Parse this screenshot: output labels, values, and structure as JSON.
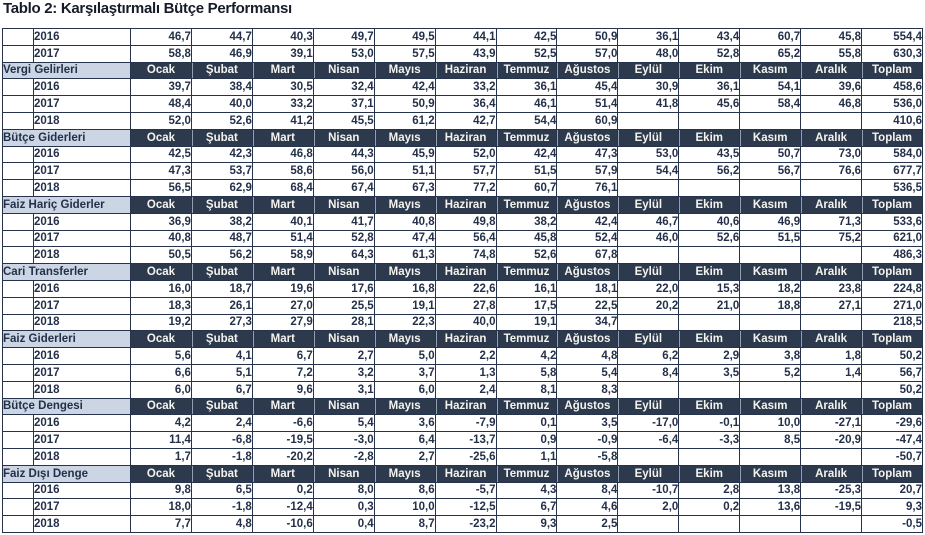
{
  "title": "Tablo 2: Karşılaştırmalı Bütçe Performansı",
  "colors": {
    "page_bg": "#ffffff",
    "header_bg": "#2d3a4d",
    "header_text": "#f4f3ee",
    "section_label_bg": "#ccd5e3",
    "section_label_text": "#22304a",
    "cell_text": "#243149",
    "border": "#25344c",
    "title_text": "#151b29",
    "separator": "#93a0b2"
  },
  "table": {
    "months": [
      "Ocak",
      "Şubat",
      "Mart",
      "Nisan",
      "Mayıs",
      "Haziran",
      "Temmuz",
      "Ağustos",
      "Eylül",
      "Ekim",
      "Kasım",
      "Aralık",
      "Toplam"
    ],
    "orphan_rows": [
      {
        "year": "2016",
        "values": [
          "46,7",
          "44,7",
          "40,3",
          "49,7",
          "49,5",
          "44,1",
          "42,5",
          "50,9",
          "36,1",
          "43,4",
          "60,7",
          "45,8",
          "554,4"
        ]
      },
      {
        "year": "2017",
        "values": [
          "58,8",
          "46,9",
          "39,1",
          "53,0",
          "57,5",
          "43,9",
          "52,5",
          "57,0",
          "48,0",
          "52,8",
          "65,2",
          "55,8",
          "630,3"
        ]
      }
    ],
    "sections": [
      {
        "label": "Vergi Gelirleri",
        "rows": [
          {
            "year": "2016",
            "values": [
              "39,7",
              "38,4",
              "30,5",
              "32,4",
              "42,4",
              "33,2",
              "36,1",
              "45,4",
              "30,9",
              "36,1",
              "54,1",
              "39,6",
              "458,6"
            ]
          },
          {
            "year": "2017",
            "values": [
              "48,4",
              "40,0",
              "33,2",
              "37,1",
              "50,9",
              "36,4",
              "46,1",
              "51,4",
              "41,8",
              "45,6",
              "58,4",
              "46,8",
              "536,0"
            ]
          },
          {
            "year": "2018",
            "values": [
              "52,0",
              "52,6",
              "41,2",
              "45,5",
              "61,2",
              "42,7",
              "54,4",
              "60,9",
              "",
              "",
              "",
              "",
              "410,6"
            ]
          }
        ]
      },
      {
        "label": "Bütçe Giderleri",
        "rows": [
          {
            "year": "2016",
            "values": [
              "42,5",
              "42,3",
              "46,8",
              "44,3",
              "45,9",
              "52,0",
              "42,4",
              "47,3",
              "53,0",
              "43,5",
              "50,7",
              "73,0",
              "584,0"
            ]
          },
          {
            "year": "2017",
            "values": [
              "47,3",
              "53,7",
              "58,6",
              "56,0",
              "51,1",
              "57,7",
              "51,5",
              "57,9",
              "54,4",
              "56,2",
              "56,7",
              "76,6",
              "677,7"
            ]
          },
          {
            "year": "2018",
            "values": [
              "56,5",
              "62,9",
              "68,4",
              "67,4",
              "67,3",
              "77,2",
              "60,7",
              "76,1",
              "",
              "",
              "",
              "",
              "536,5"
            ]
          }
        ]
      },
      {
        "label": "Faiz Hariç Giderler",
        "rows": [
          {
            "year": "2016",
            "values": [
              "36,9",
              "38,2",
              "40,1",
              "41,7",
              "40,8",
              "49,8",
              "38,2",
              "42,4",
              "46,7",
              "40,6",
              "46,9",
              "71,3",
              "533,6"
            ]
          },
          {
            "year": "2017",
            "values": [
              "40,8",
              "48,7",
              "51,4",
              "52,8",
              "47,4",
              "56,4",
              "45,8",
              "52,4",
              "46,0",
              "52,6",
              "51,5",
              "75,2",
              "621,0"
            ]
          },
          {
            "year": "2018",
            "values": [
              "50,5",
              "56,2",
              "58,9",
              "64,3",
              "61,3",
              "74,8",
              "52,6",
              "67,8",
              "",
              "",
              "",
              "",
              "486,3"
            ]
          }
        ]
      },
      {
        "label": "Cari Transferler",
        "rows": [
          {
            "year": "2016",
            "values": [
              "16,0",
              "18,7",
              "19,6",
              "17,6",
              "16,8",
              "22,6",
              "16,1",
              "18,1",
              "22,0",
              "15,3",
              "18,2",
              "23,8",
              "224,8"
            ]
          },
          {
            "year": "2017",
            "values": [
              "18,3",
              "26,1",
              "27,0",
              "25,5",
              "19,1",
              "27,8",
              "17,5",
              "22,5",
              "20,2",
              "21,0",
              "18,8",
              "27,1",
              "271,0"
            ]
          },
          {
            "year": "2018",
            "values": [
              "19,2",
              "27,3",
              "27,9",
              "28,1",
              "22,3",
              "40,0",
              "19,1",
              "34,7",
              "",
              "",
              "",
              "",
              "218,5"
            ]
          }
        ]
      },
      {
        "label": "Faiz Giderleri",
        "rows": [
          {
            "year": "2016",
            "values": [
              "5,6",
              "4,1",
              "6,7",
              "2,7",
              "5,0",
              "2,2",
              "4,2",
              "4,8",
              "6,2",
              "2,9",
              "3,8",
              "1,8",
              "50,2"
            ]
          },
          {
            "year": "2017",
            "values": [
              "6,6",
              "5,1",
              "7,2",
              "3,2",
              "3,7",
              "1,3",
              "5,8",
              "5,4",
              "8,4",
              "3,5",
              "5,2",
              "1,4",
              "56,7"
            ]
          },
          {
            "year": "2018",
            "values": [
              "6,0",
              "6,7",
              "9,6",
              "3,1",
              "6,0",
              "2,4",
              "8,1",
              "8,3",
              "",
              "",
              "",
              "",
              "50,2"
            ]
          }
        ]
      },
      {
        "label": "Bütçe Dengesi",
        "rows": [
          {
            "year": "2016",
            "values": [
              "4,2",
              "2,4",
              "-6,6",
              "5,4",
              "3,6",
              "-7,9",
              "0,1",
              "3,5",
              "-17,0",
              "-0,1",
              "10,0",
              "-27,1",
              "-29,6"
            ]
          },
          {
            "year": "2017",
            "values": [
              "11,4",
              "-6,8",
              "-19,5",
              "-3,0",
              "6,4",
              "-13,7",
              "0,9",
              "-0,9",
              "-6,4",
              "-3,3",
              "8,5",
              "-20,9",
              "-47,4"
            ]
          },
          {
            "year": "2018",
            "values": [
              "1,7",
              "-1,8",
              "-20,2",
              "-2,8",
              "2,7",
              "-25,6",
              "1,1",
              "-5,8",
              "",
              "",
              "",
              "",
              "-50,7"
            ]
          }
        ]
      },
      {
        "label": "Faiz Dışı Denge",
        "rows": [
          {
            "year": "2016",
            "values": [
              "9,8",
              "6,5",
              "0,2",
              "8,0",
              "8,6",
              "-5,7",
              "4,3",
              "8,4",
              "-10,7",
              "2,8",
              "13,8",
              "-25,3",
              "20,7"
            ]
          },
          {
            "year": "2017",
            "values": [
              "18,0",
              "-1,8",
              "-12,4",
              "0,3",
              "10,0",
              "-12,5",
              "6,7",
              "4,6",
              "2,0",
              "0,2",
              "13,6",
              "-19,5",
              "9,3"
            ]
          },
          {
            "year": "2018",
            "values": [
              "7,7",
              "4,8",
              "-10,6",
              "0,4",
              "8,7",
              "-23,2",
              "9,3",
              "2,5",
              "",
              "",
              "",
              "",
              "-0,5"
            ]
          }
        ]
      }
    ]
  }
}
